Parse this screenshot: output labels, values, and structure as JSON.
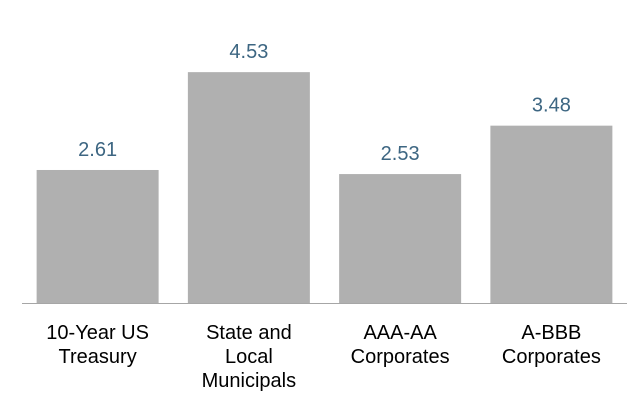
{
  "chart_data": {
    "type": "bar",
    "categories": [
      [
        "10-Year US",
        "Treasury"
      ],
      [
        "State and",
        "Local",
        "Municipals"
      ],
      [
        "AAA-AA",
        "Corporates"
      ],
      [
        "A-BBB",
        "Corporates"
      ]
    ],
    "values": [
      2.61,
      4.53,
      2.53,
      3.48
    ],
    "value_labels": [
      "2.61",
      "4.53",
      "2.53",
      "3.48"
    ],
    "title": "",
    "xlabel": "",
    "ylabel": "",
    "ylim": [
      0,
      5.2
    ],
    "grid": false,
    "legend": "none"
  },
  "colors": {
    "bar": "#b0b0b0",
    "value_label": "#3d6682",
    "axis": "#a6a6a6"
  }
}
